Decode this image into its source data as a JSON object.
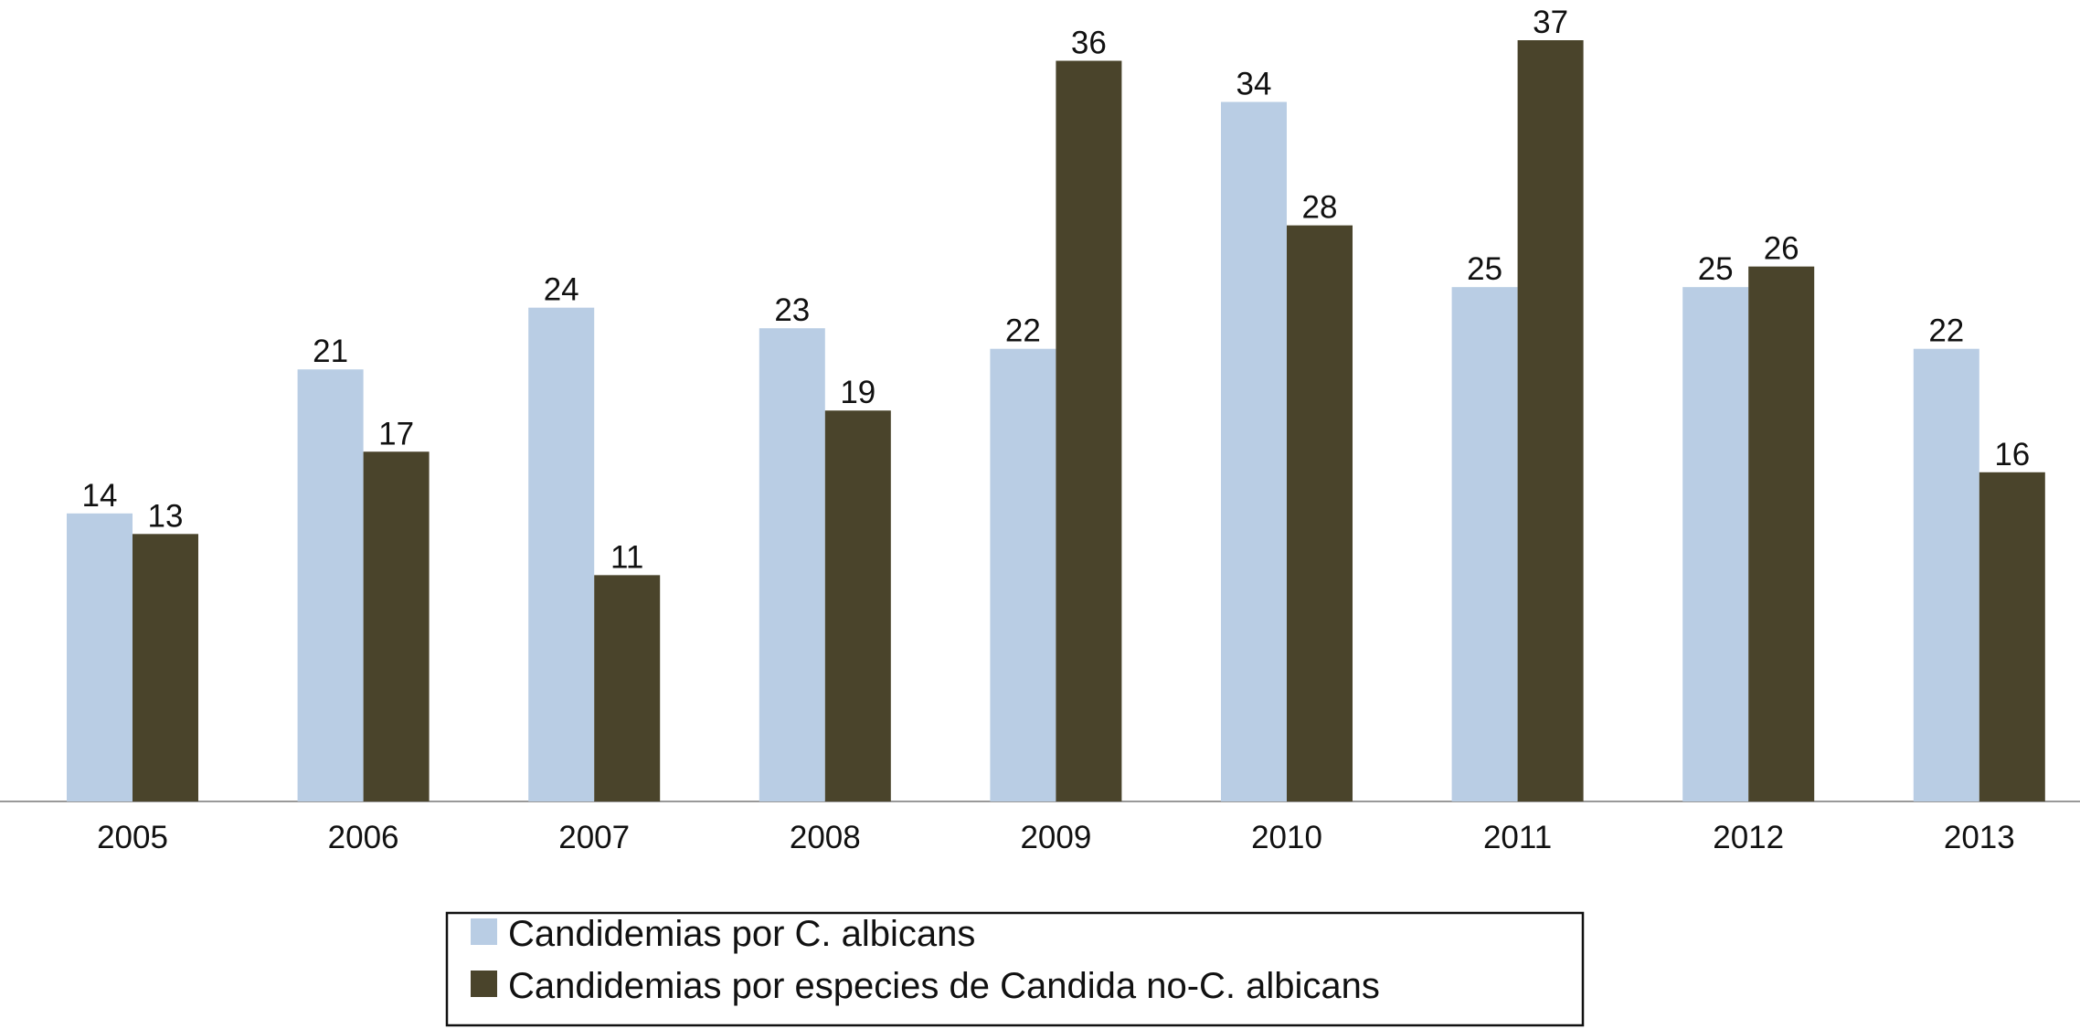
{
  "chart_data": {
    "type": "bar",
    "categories": [
      "2005",
      "2006",
      "2007",
      "2008",
      "2009",
      "2010",
      "2011",
      "2012",
      "2013"
    ],
    "series": [
      {
        "name": "Candidemias por C. albicans",
        "color": "#b9cde4",
        "values": [
          14,
          21,
          24,
          23,
          22,
          34,
          25,
          25,
          22
        ]
      },
      {
        "name": "Candidemias por especies de Candida no-C. albicans",
        "color": "#4a442b",
        "values": [
          13,
          17,
          11,
          19,
          36,
          28,
          37,
          26,
          16
        ]
      }
    ]
  }
}
